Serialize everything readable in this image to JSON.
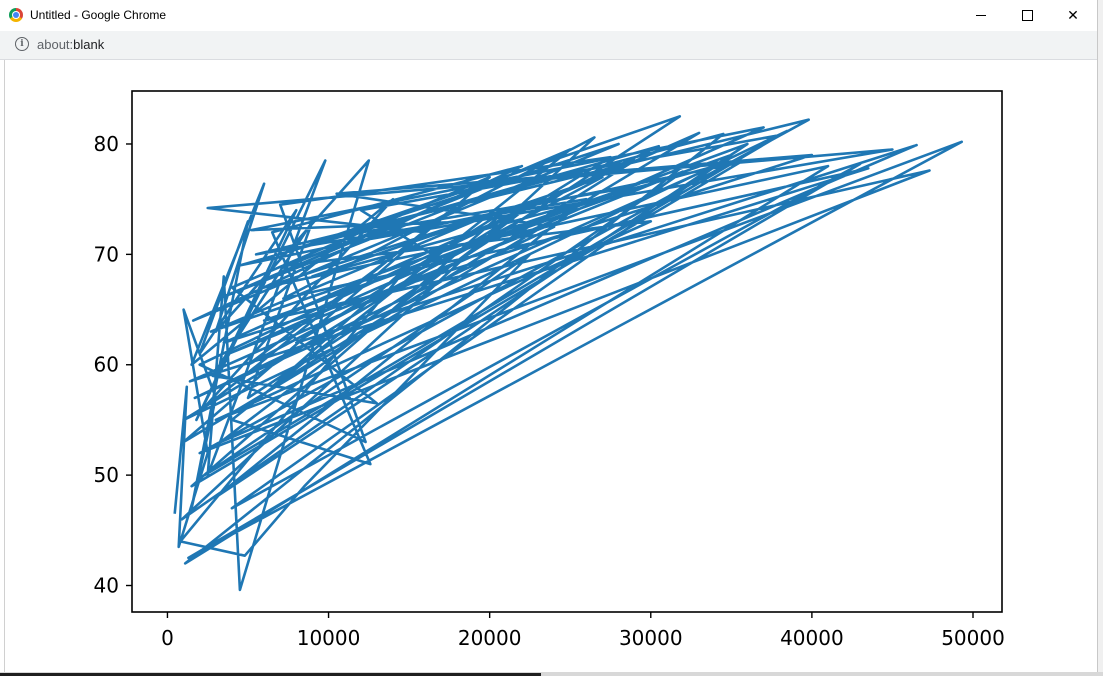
{
  "window": {
    "title": "Untitled - Google Chrome",
    "minimize_glyph": "",
    "close_glyph": "✕"
  },
  "address_bar": {
    "scheme": "about:",
    "path": "blank",
    "info_icon": "info-icon"
  },
  "chart_data": {
    "type": "line",
    "title": "",
    "xlabel": "",
    "ylabel": "",
    "xlim": [
      -2200,
      51800
    ],
    "ylim": [
      37.6,
      84.8
    ],
    "xticks": [
      0,
      10000,
      20000,
      30000,
      40000,
      50000
    ],
    "yticks": [
      40,
      50,
      60,
      70,
      80
    ],
    "grid": false,
    "legend": "none",
    "line_color": "#1f77b4",
    "series": [
      {
        "values": [
          [
            450,
            46.5
          ],
          [
            1200,
            58
          ],
          [
            700,
            43.5
          ],
          [
            2500,
            52
          ],
          [
            1000,
            65
          ],
          [
            3000,
            57
          ],
          [
            1500,
            47
          ],
          [
            5000,
            73
          ],
          [
            2000,
            61
          ],
          [
            8000,
            74
          ],
          [
            1800,
            55
          ],
          [
            9800,
            78.5
          ],
          [
            2500,
            50
          ],
          [
            3500,
            68
          ],
          [
            4500,
            39.6
          ],
          [
            12500,
            78.5
          ],
          [
            3000,
            63
          ],
          [
            6000,
            76.4
          ],
          [
            1500,
            60
          ],
          [
            14000,
            75
          ],
          [
            2200,
            56
          ],
          [
            18000,
            74.5
          ],
          [
            3200,
            66
          ],
          [
            25000,
            79.5
          ],
          [
            4000,
            55
          ],
          [
            12600,
            51
          ],
          [
            6500,
            72
          ],
          [
            22000,
            78
          ],
          [
            1600,
            64
          ],
          [
            28000,
            80
          ],
          [
            7000,
            70
          ],
          [
            31800,
            82.5
          ],
          [
            5000,
            57
          ],
          [
            9000,
            73
          ],
          [
            2800,
            59
          ],
          [
            13000,
            56.5
          ],
          [
            4000,
            67
          ],
          [
            20000,
            77
          ],
          [
            1000,
            53
          ],
          [
            33000,
            81
          ],
          [
            8000,
            65
          ],
          [
            36000,
            80
          ],
          [
            3000,
            48
          ],
          [
            26000,
            75
          ],
          [
            5500,
            70
          ],
          [
            39800,
            82.2
          ],
          [
            2000,
            52
          ],
          [
            47300,
            77.6
          ],
          [
            6000,
            64
          ],
          [
            35000,
            79
          ],
          [
            4000,
            47
          ],
          [
            43000,
            78.2
          ],
          [
            1300,
            42.5
          ],
          [
            49300,
            80.2
          ],
          [
            3000,
            55
          ],
          [
            30000,
            73
          ],
          [
            7500,
            69
          ],
          [
            20500,
            76.5
          ],
          [
            11000,
            71
          ],
          [
            45000,
            79.5
          ],
          [
            2500,
            74.2
          ],
          [
            16000,
            72
          ],
          [
            5000,
            60
          ],
          [
            27000,
            77
          ],
          [
            9000,
            68
          ],
          [
            34000,
            78
          ],
          [
            1700,
            57
          ],
          [
            24000,
            72.5
          ],
          [
            10500,
            75.5
          ],
          [
            40000,
            79
          ],
          [
            3500,
            62
          ],
          [
            29000,
            78.5
          ],
          [
            6500,
            58
          ],
          [
            15000,
            69
          ],
          [
            800,
            44
          ],
          [
            4800,
            42.7
          ],
          [
            8500,
            49
          ],
          [
            22500,
            70
          ],
          [
            2300,
            50
          ],
          [
            38000,
            80.8
          ],
          [
            12000,
            74
          ],
          [
            17000,
            69.5
          ],
          [
            3800,
            61
          ],
          [
            32000,
            77.5
          ],
          [
            900,
            46
          ],
          [
            26500,
            80.6
          ],
          [
            7200,
            66
          ],
          [
            43500,
            77.8
          ],
          [
            1400,
            58.5
          ],
          [
            37000,
            81.5
          ],
          [
            5200,
            72.2
          ],
          [
            19000,
            73
          ],
          [
            2700,
            63
          ],
          [
            28500,
            76
          ],
          [
            10000,
            71.5
          ],
          [
            34500,
            80.9
          ],
          [
            1100,
            42
          ],
          [
            41000,
            78
          ],
          [
            6000,
            67
          ],
          [
            23000,
            75
          ],
          [
            3300,
            53
          ],
          [
            46500,
            79.9
          ],
          [
            8000,
            62
          ],
          [
            21000,
            74
          ],
          [
            1500,
            49
          ],
          [
            35500,
            78.3
          ],
          [
            4500,
            69
          ],
          [
            30500,
            79.8
          ],
          [
            2000,
            60
          ],
          [
            12300,
            53
          ],
          [
            7000,
            74.5
          ],
          [
            27500,
            78.8
          ],
          [
            1000,
            55
          ],
          [
            38500,
            81.2
          ]
        ]
      }
    ]
  }
}
